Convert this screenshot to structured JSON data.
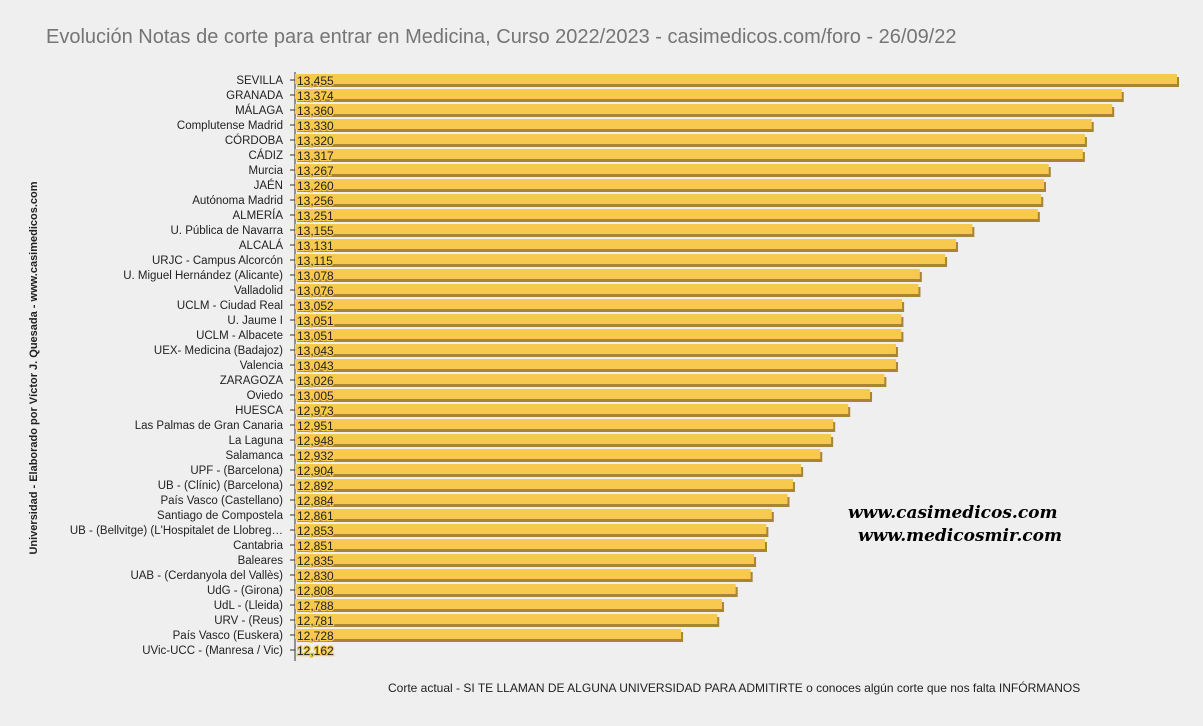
{
  "chart_data": {
    "type": "bar",
    "orientation": "horizontal",
    "title": "Evolución Notas de corte para entrar en Medicina, Curso 2022/2023 - casimedicos.com/foro - 26/09/22",
    "ylabel": "Universidad  - Elaborado por Víctor J. Quesada - www.casimedicos.com",
    "xlabel": "Corte actual - SI TE LLAMAN DE ALGUNA UNIVERSIDAD PARA ADMITIRTE o conoces algún corte que nos falta INFÓRMANOS",
    "xlim": [
      12.162,
      13.455
    ],
    "categories": [
      "SEVILLA",
      "GRANADA",
      "MÁLAGA",
      "Complutense Madrid",
      "CÓRDOBA",
      "CÁDIZ",
      "Murcia",
      "JAÉN",
      "Autónoma Madrid",
      "ALMERÍA",
      "U. Pública de Navarra",
      "ALCALÁ",
      "URJC - Campus Alcorcón",
      "U. Miguel Hernández (Alicante)",
      "Valladolid",
      "UCLM - Ciudad Real",
      "U. Jaume I",
      "UCLM - Albacete",
      "UEX- Medicina (Badajoz)",
      "Valencia",
      "ZARAGOZA",
      "Oviedo",
      "HUESCA",
      "Las Palmas de Gran Canaria",
      "La Laguna",
      "Salamanca",
      "UPF - (Barcelona)",
      "UB - (Clínic) (Barcelona)",
      "País Vasco (Castellano)",
      "Santiago de Compostela",
      "UB - (Bellvitge) (L'Hospitalet de Llobreg…",
      "Cantabria",
      "Baleares",
      "UAB - (Cerdanyola del Vallès)",
      "UdG - (Girona)",
      "UdL - (Lleida)",
      "URV - (Reus)",
      "País Vasco (Euskera)",
      "UVic-UCC - (Manresa / Vic)"
    ],
    "values": [
      13.455,
      13.374,
      13.36,
      13.33,
      13.32,
      13.317,
      13.267,
      13.26,
      13.256,
      13.251,
      13.155,
      13.131,
      13.115,
      13.078,
      13.076,
      13.052,
      13.051,
      13.051,
      13.043,
      13.043,
      13.026,
      13.005,
      12.973,
      12.951,
      12.948,
      12.932,
      12.904,
      12.892,
      12.884,
      12.861,
      12.853,
      12.851,
      12.835,
      12.83,
      12.808,
      12.788,
      12.781,
      12.728,
      12.162
    ],
    "labels": [
      "13,455",
      "13,374",
      "13,360",
      "13,330",
      "13,320",
      "13,317",
      "13,267",
      "13,260",
      "13,256",
      "13,251",
      "13,155",
      "13,131",
      "13,115",
      "13,078",
      "13,076",
      "13,052",
      "13,051",
      "13,051",
      "13,043",
      "13,043",
      "13,026",
      "13,005",
      "12,973",
      "12,951",
      "12,948",
      "12,932",
      "12,904",
      "12,892",
      "12,884",
      "12,861",
      "12,853",
      "12,851",
      "12,835",
      "12,830",
      "12,808",
      "12,788",
      "12,781",
      "12,728",
      "12,162"
    ],
    "colors": {
      "bar": "#f7c94f",
      "shadow": "#a88436"
    }
  },
  "watermarks": [
    "www.casimedicos.com",
    "www.medicosmir.com"
  ]
}
